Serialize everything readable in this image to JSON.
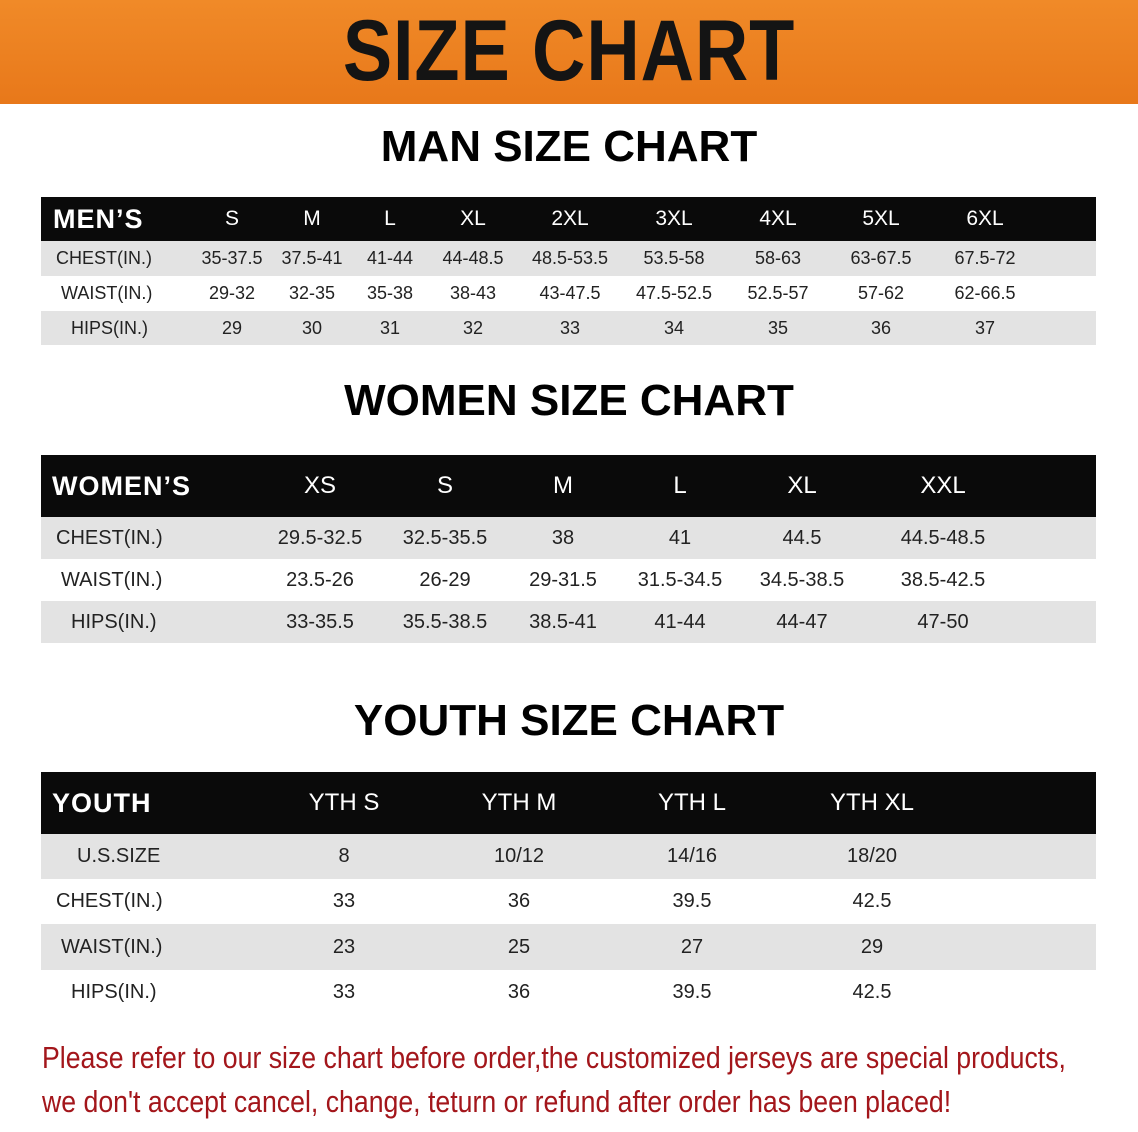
{
  "banner_title": "SIZE CHART",
  "men": {
    "title": "MAN SIZE CHART",
    "header": [
      "MEN’S",
      "S",
      "M",
      "L",
      "XL",
      "2XL",
      "3XL",
      "4XL",
      "5XL",
      "6XL"
    ],
    "rows": [
      [
        "CHEST(IN.)",
        "35-37.5",
        "37.5-41",
        "41-44",
        "44-48.5",
        "48.5-53.5",
        "53.5-58",
        "58-63",
        "63-67.5",
        "67.5-72"
      ],
      [
        "WAIST(IN.)",
        "29-32",
        "32-35",
        "35-38",
        "38-43",
        "43-47.5",
        "47.5-52.5",
        "52.5-57",
        "57-62",
        "62-66.5"
      ],
      [
        "HIPS(IN.)",
        "29",
        "30",
        "31",
        "32",
        "33",
        "34",
        "35",
        "36",
        "37"
      ]
    ]
  },
  "women": {
    "title": "WOMEN SIZE CHART",
    "header": [
      "WOMEN’S",
      "XS",
      "S",
      "M",
      "L",
      "XL",
      "XXL"
    ],
    "rows": [
      [
        "CHEST(IN.)",
        "29.5-32.5",
        "32.5-35.5",
        "38",
        "41",
        "44.5",
        "44.5-48.5"
      ],
      [
        "WAIST(IN.)",
        "23.5-26",
        "26-29",
        "29-31.5",
        "31.5-34.5",
        "34.5-38.5",
        "38.5-42.5"
      ],
      [
        "HIPS(IN.)",
        "33-35.5",
        "35.5-38.5",
        "38.5-41",
        "41-44",
        "44-47",
        "47-50"
      ]
    ]
  },
  "youth": {
    "title": "YOUTH SIZE CHART",
    "header": [
      "YOUTH",
      "YTH S",
      "YTH M",
      "YTH L",
      "YTH XL"
    ],
    "rows": [
      [
        "U.S.SIZE",
        "8",
        "10/12",
        "14/16",
        "18/20"
      ],
      [
        "CHEST(IN.)",
        "33",
        "36",
        "39.5",
        "42.5"
      ],
      [
        "WAIST(IN.)",
        "23",
        "25",
        "27",
        "29"
      ],
      [
        "HIPS(IN.)",
        "33",
        "36",
        "39.5",
        "42.5"
      ]
    ]
  },
  "note": {
    "line1": "Please refer to our size chart before order,the customized jerseys are special products,",
    "line2": "we don't accept cancel, change, teturn or refund after order has been placed!"
  },
  "colors": {
    "banner": "#ee8424",
    "header_row": "#0a0a0a",
    "stripe": "#e3e3e3",
    "note": "#a3161b"
  }
}
